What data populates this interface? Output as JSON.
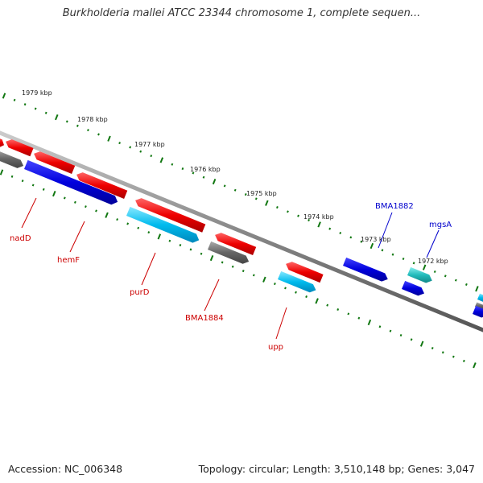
{
  "title": "Burkholderia mallei ATCC 23344 chromosome 1, complete sequen...",
  "footer": {
    "accession": "Accession: NC_006348",
    "summary": "Topology: circular; Length: 3,510,148 bp; Genes: 3,047"
  },
  "kbp_labels": [
    "1979 kbp",
    "1978 kbp",
    "1977 kbp",
    "1976 kbp",
    "1975 kbp",
    "1974 kbp",
    "1973 kbp",
    "1972 kbp"
  ],
  "gene_labels": [
    {
      "name": "nadD",
      "color": "#cc0000"
    },
    {
      "name": "hemF",
      "color": "#cc0000"
    },
    {
      "name": "purD",
      "color": "#cc0000"
    },
    {
      "name": "BMA1884",
      "color": "#cc0000"
    },
    {
      "name": "upp",
      "color": "#cc0000"
    },
    {
      "name": "BMA1882",
      "color": "#0000cc"
    },
    {
      "name": "mgsA",
      "color": "#0000cc"
    }
  ],
  "colors": {
    "red_gene": "#ee0000",
    "blue_gene": "#0000dd",
    "cyan_gene": "#00bbee",
    "gray_gene": "#666666",
    "teal_gene": "#22bbbb",
    "backbone": "#888888",
    "ticks": "#117711"
  }
}
